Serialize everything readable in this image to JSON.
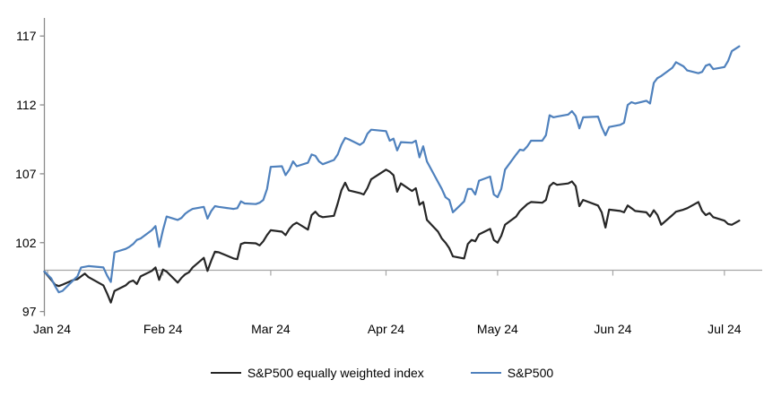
{
  "chart_data": {
    "type": "line",
    "title": "",
    "xlabel": "",
    "ylabel": "",
    "ylim": [
      97,
      117
    ],
    "y_ticks": [
      97,
      102,
      107,
      112,
      117
    ],
    "x_tick_labels": [
      "Jan 24",
      "Feb 24",
      "Mar 24",
      "Apr 24",
      "May 24",
      "Jun 24",
      "Jul 24"
    ],
    "grid": false,
    "legend_position": "bottom-center",
    "baseline_value": 100,
    "colors": {
      "axis": "#8c8c8c",
      "baseline": "#a6a6a6",
      "tick_text": "#000000",
      "sp500_ew": "#262626",
      "sp500": "#4f81bd"
    },
    "dates": [
      "2023-12-29",
      "2024-01-02",
      "2024-01-03",
      "2024-01-04",
      "2024-01-05",
      "2024-01-08",
      "2024-01-09",
      "2024-01-10",
      "2024-01-11",
      "2024-01-12",
      "2024-01-16",
      "2024-01-17",
      "2024-01-18",
      "2024-01-19",
      "2024-01-22",
      "2024-01-23",
      "2024-01-24",
      "2024-01-25",
      "2024-01-26",
      "2024-01-29",
      "2024-01-30",
      "2024-01-31",
      "2024-02-01",
      "2024-02-02",
      "2024-02-05",
      "2024-02-06",
      "2024-02-07",
      "2024-02-08",
      "2024-02-09",
      "2024-02-12",
      "2024-02-13",
      "2024-02-14",
      "2024-02-15",
      "2024-02-16",
      "2024-02-20",
      "2024-02-21",
      "2024-02-22",
      "2024-02-23",
      "2024-02-26",
      "2024-02-27",
      "2024-02-28",
      "2024-02-29",
      "2024-03-01",
      "2024-03-04",
      "2024-03-05",
      "2024-03-06",
      "2024-03-07",
      "2024-03-08",
      "2024-03-11",
      "2024-03-12",
      "2024-03-13",
      "2024-03-14",
      "2024-03-15",
      "2024-03-18",
      "2024-03-19",
      "2024-03-20",
      "2024-03-21",
      "2024-03-22",
      "2024-03-25",
      "2024-03-26",
      "2024-03-27",
      "2024-03-28",
      "2024-04-01",
      "2024-04-02",
      "2024-04-03",
      "2024-04-04",
      "2024-04-05",
      "2024-04-08",
      "2024-04-09",
      "2024-04-10",
      "2024-04-11",
      "2024-04-12",
      "2024-04-15",
      "2024-04-16",
      "2024-04-17",
      "2024-04-18",
      "2024-04-19",
      "2024-04-22",
      "2024-04-23",
      "2024-04-24",
      "2024-04-25",
      "2024-04-26",
      "2024-04-29",
      "2024-04-30",
      "2024-05-01",
      "2024-05-02",
      "2024-05-03",
      "2024-05-06",
      "2024-05-07",
      "2024-05-08",
      "2024-05-09",
      "2024-05-10",
      "2024-05-13",
      "2024-05-14",
      "2024-05-15",
      "2024-05-16",
      "2024-05-17",
      "2024-05-20",
      "2024-05-21",
      "2024-05-22",
      "2024-05-23",
      "2024-05-24",
      "2024-05-28",
      "2024-05-29",
      "2024-05-30",
      "2024-05-31",
      "2024-06-03",
      "2024-06-04",
      "2024-06-05",
      "2024-06-06",
      "2024-06-07",
      "2024-06-10",
      "2024-06-11",
      "2024-06-12",
      "2024-06-13",
      "2024-06-14",
      "2024-06-17",
      "2024-06-18",
      "2024-06-20",
      "2024-06-21",
      "2024-06-24",
      "2024-06-25",
      "2024-06-26",
      "2024-06-27",
      "2024-06-28",
      "2024-07-01",
      "2024-07-02",
      "2024-07-03",
      "2024-07-05"
    ],
    "series": [
      {
        "name": "S&P500 equally weighted index",
        "color": "#262626",
        "values": [
          99.9,
          99.3,
          98.95,
          98.85,
          98.95,
          99.3,
          99.35,
          99.55,
          99.75,
          99.5,
          98.9,
          98.3,
          97.65,
          98.5,
          98.9,
          99.15,
          99.25,
          99.0,
          99.55,
          99.95,
          100.2,
          99.3,
          100.05,
          99.9,
          99.1,
          99.45,
          99.7,
          99.85,
          100.2,
          100.9,
          99.95,
          100.7,
          101.35,
          101.3,
          100.85,
          100.8,
          101.9,
          102.0,
          101.95,
          101.8,
          102.1,
          102.55,
          102.9,
          102.8,
          102.55,
          103.0,
          103.3,
          103.45,
          102.95,
          104.0,
          104.25,
          103.95,
          103.85,
          103.95,
          104.85,
          105.8,
          106.35,
          105.8,
          105.6,
          105.5,
          105.95,
          106.6,
          107.3,
          107.15,
          106.9,
          105.7,
          106.3,
          105.75,
          105.95,
          104.75,
          104.95,
          103.65,
          102.8,
          102.3,
          102.0,
          101.6,
          101.0,
          100.85,
          101.9,
          102.2,
          102.1,
          102.6,
          103.0,
          102.2,
          102.0,
          102.5,
          103.3,
          103.9,
          104.3,
          104.55,
          104.8,
          104.95,
          104.9,
          105.1,
          106.1,
          106.35,
          106.2,
          106.3,
          106.45,
          106.1,
          104.65,
          105.1,
          104.7,
          104.2,
          103.1,
          104.4,
          104.3,
          104.2,
          104.7,
          104.5,
          104.3,
          104.2,
          103.9,
          104.35,
          104.0,
          103.3,
          104.0,
          104.25,
          104.4,
          104.5,
          104.95,
          104.3,
          104.0,
          104.15,
          103.85,
          103.6,
          103.35,
          103.3,
          103.6
        ]
      },
      {
        "name": "S&P500",
        "color": "#4f81bd",
        "values": [
          99.9,
          99.4,
          98.85,
          98.4,
          98.5,
          99.3,
          99.55,
          100.2,
          100.25,
          100.3,
          100.2,
          99.6,
          99.15,
          101.3,
          101.55,
          101.7,
          101.9,
          102.2,
          102.3,
          102.9,
          103.2,
          101.7,
          102.9,
          103.9,
          103.65,
          103.8,
          104.1,
          104.3,
          104.45,
          104.6,
          103.75,
          104.3,
          104.65,
          104.6,
          104.45,
          104.5,
          105.0,
          104.85,
          104.8,
          104.9,
          105.1,
          105.9,
          107.5,
          107.55,
          106.9,
          107.3,
          107.9,
          107.55,
          107.8,
          108.4,
          108.3,
          107.9,
          107.7,
          108.0,
          108.4,
          109.1,
          109.6,
          109.5,
          109.1,
          109.3,
          109.9,
          110.2,
          110.1,
          109.4,
          109.55,
          108.7,
          109.3,
          109.25,
          109.4,
          108.2,
          109.0,
          107.9,
          106.4,
          105.9,
          105.3,
          105.1,
          104.2,
          105.0,
          105.9,
          105.9,
          105.5,
          106.5,
          106.8,
          105.5,
          105.3,
          105.9,
          107.3,
          108.4,
          108.75,
          108.7,
          109.0,
          109.4,
          109.4,
          109.8,
          111.25,
          111.1,
          111.15,
          111.3,
          111.55,
          111.2,
          110.3,
          111.1,
          111.15,
          110.4,
          109.8,
          110.4,
          110.55,
          110.7,
          112.0,
          112.2,
          112.1,
          112.3,
          112.1,
          113.6,
          113.95,
          114.1,
          114.7,
          115.1,
          114.8,
          114.5,
          114.3,
          114.4,
          114.85,
          114.95,
          114.6,
          114.75,
          115.2,
          115.9,
          116.25
        ]
      }
    ]
  }
}
